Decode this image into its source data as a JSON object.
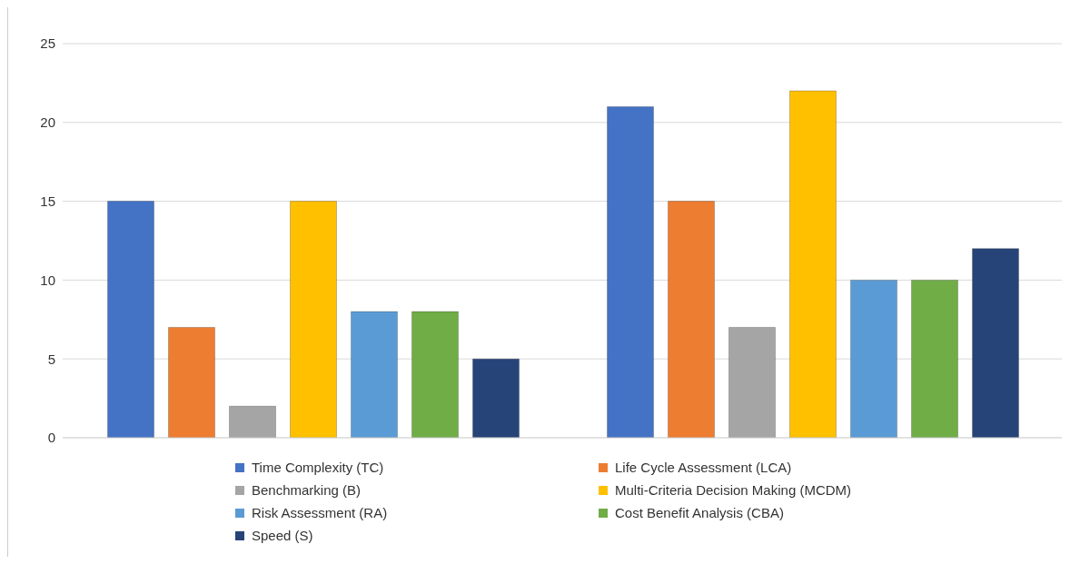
{
  "chart_data": {
    "type": "bar",
    "categories": [
      null,
      null
    ],
    "series": [
      {
        "name": "Time Complexity (TC)",
        "color": "#4472c4",
        "values": [
          15,
          21
        ]
      },
      {
        "name": "Life Cycle Assessment (LCA)",
        "color": "#ed7d31",
        "values": [
          7,
          15
        ]
      },
      {
        "name": "Benchmarking (B)",
        "color": "#a5a5a5",
        "values": [
          2,
          7
        ]
      },
      {
        "name": "Multi-Criteria Decision Making (MCDM)",
        "color": "#ffc000",
        "values": [
          15,
          22
        ]
      },
      {
        "name": "Risk Assessment (RA)",
        "color": "#5b9bd5",
        "values": [
          8,
          10
        ]
      },
      {
        "name": "Cost Benefit Analysis (CBA)",
        "color": "#70ad47",
        "values": [
          8,
          10
        ]
      },
      {
        "name": "Speed (S)",
        "color": "#264478",
        "values": [
          5,
          12
        ]
      }
    ],
    "ylim": [
      0,
      25
    ],
    "yticks": [
      0,
      5,
      10,
      15,
      20,
      25
    ],
    "grid": "y",
    "legend": "bottom"
  }
}
